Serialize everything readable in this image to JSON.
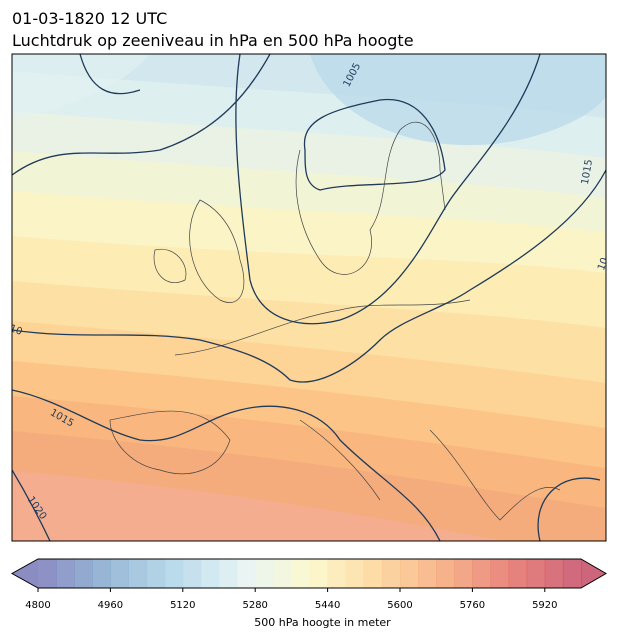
{
  "chart_data": {
    "type": "contour_map",
    "title": "01-03-1820 12 UTC",
    "subtitle": "Luchtdruk op zeeniveau in hPa en 500 hPa hoogte",
    "isobar_labels": [
      "1005",
      "1015",
      "10",
      "10",
      "1015",
      "1020"
    ],
    "colorbar": {
      "label": "500 hPa hoogte in meter",
      "clim": [
        4800,
        6000
      ],
      "ticks": [
        4800,
        4960,
        5120,
        5280,
        5440,
        5600,
        5760,
        5920
      ],
      "level_step": 40,
      "extend": "both",
      "colors": [
        "#6e6fb2",
        "#7fa6cd",
        "#a9d2e6",
        "#e1f1f3",
        "#fcf7c4",
        "#fdd08e",
        "#f4a06e",
        "#e2665e",
        "#c0405a"
      ]
    }
  }
}
